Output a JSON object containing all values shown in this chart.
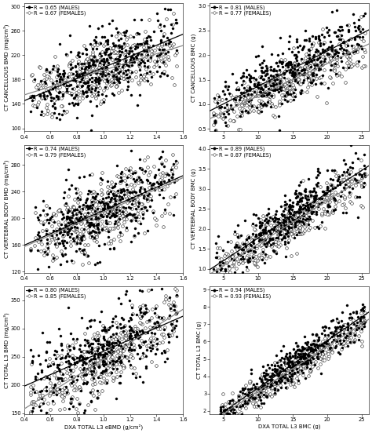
{
  "subplots": [
    {
      "row": 0,
      "col": 0,
      "legend_males": "R = 0.65 (MALES)",
      "legend_females": "R = 0.67 (FEMALES)",
      "xlabel": "",
      "ylabel": "CT CANCELLOUS BMD (mg/cm³)",
      "xlim": [
        0.4,
        1.6
      ],
      "ylim": [
        95,
        305
      ],
      "xticks": [
        0.4,
        0.6,
        0.8,
        1.0,
        1.2,
        1.4,
        1.6
      ],
      "yticks": [
        100,
        140,
        180,
        220,
        260,
        300
      ]
    },
    {
      "row": 0,
      "col": 1,
      "legend_males": "R = 0.81 (MALES)",
      "legend_females": "R = 0.77 (FEMALES)",
      "xlabel": "",
      "ylabel": "CT CANCELLOUS BMC (g)",
      "xlim": [
        3,
        26
      ],
      "ylim": [
        0.45,
        3.05
      ],
      "xticks": [
        5,
        10,
        15,
        20,
        25
      ],
      "yticks": [
        0.5,
        1.0,
        1.5,
        2.0,
        2.5,
        3.0
      ]
    },
    {
      "row": 1,
      "col": 0,
      "legend_males": "R = 0.74 (MALES)",
      "legend_females": "R = 0.79 (FEMALES)",
      "xlabel": "",
      "ylabel": "CT VERTEBRAL BODY BMD (mg/cm³)",
      "xlim": [
        0.4,
        1.6
      ],
      "ylim": [
        118,
        310
      ],
      "xticks": [
        0.4,
        0.6,
        0.8,
        1.0,
        1.2,
        1.4,
        1.6
      ],
      "yticks": [
        120,
        160,
        200,
        240,
        280
      ]
    },
    {
      "row": 1,
      "col": 1,
      "legend_males": "R = 0.89 (MALES)",
      "legend_females": "R = 0.87 (FEMALES)",
      "xlabel": "",
      "ylabel": "CT VERTEBRAL BODY BMC (g)",
      "xlim": [
        3,
        26
      ],
      "ylim": [
        0.9,
        4.1
      ],
      "xticks": [
        5,
        10,
        15,
        20,
        25
      ],
      "yticks": [
        1.0,
        1.5,
        2.0,
        2.5,
        3.0,
        3.5,
        4.0
      ]
    },
    {
      "row": 2,
      "col": 0,
      "legend_males": "R = 0.80 (MALES)",
      "legend_females": "R = 0.85 (FEMALES)",
      "xlabel": "DXA TOTAL L3 eBMD (g/cm²)",
      "ylabel": "CT TOTAL L3 BMD (mg/cm³)",
      "xlim": [
        0.4,
        1.6
      ],
      "ylim": [
        148,
        375
      ],
      "xticks": [
        0.4,
        0.6,
        0.8,
        1.0,
        1.2,
        1.4,
        1.6
      ],
      "yticks": [
        150,
        200,
        250,
        300,
        350
      ]
    },
    {
      "row": 2,
      "col": 1,
      "legend_males": "R = 0.94 (MALES)",
      "legend_females": "R = 0.93 (FEMALES)",
      "xlabel": "DXA TOTAL L3 BMC (g)",
      "ylabel": "CT TOTAL L3 BMC (g)",
      "xlim": [
        3,
        26
      ],
      "ylim": [
        1.8,
        9.2
      ],
      "xticks": [
        5,
        10,
        15,
        20,
        25
      ],
      "yticks": [
        2,
        3,
        4,
        5,
        6,
        7,
        8,
        9
      ]
    }
  ],
  "n_male": 420,
  "n_female": 380,
  "marker_size_male": 5,
  "marker_size_female": 7,
  "male_color": "black",
  "line_color_male": "black",
  "line_color_female": "#888888",
  "bg_color": "white",
  "axis_label_size": 5.0,
  "tick_label_size": 4.8,
  "legend_size": 4.8,
  "linewidth": 0.9
}
